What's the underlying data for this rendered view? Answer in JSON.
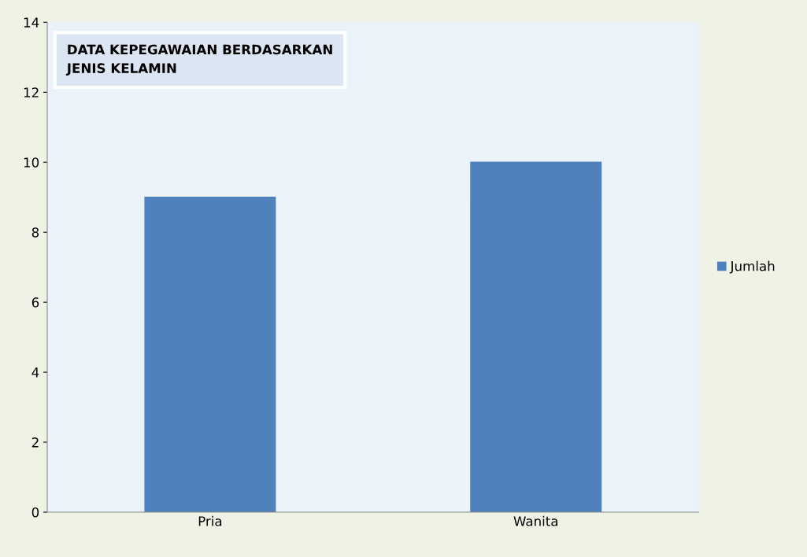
{
  "chart_data": {
    "type": "bar",
    "title": "DATA KEPEGAWAIAN BERDASARKAN\nJENIS KELAMIN",
    "categories": [
      "Pria",
      "Wanita"
    ],
    "series": [
      {
        "name": "Jumlah",
        "color": "#4f81bd",
        "values": [
          9,
          10
        ]
      }
    ],
    "ylim": [
      0,
      14
    ],
    "yticks": [
      0,
      2,
      4,
      6,
      8,
      10,
      12,
      14
    ],
    "grid": false,
    "legend": "right"
  }
}
